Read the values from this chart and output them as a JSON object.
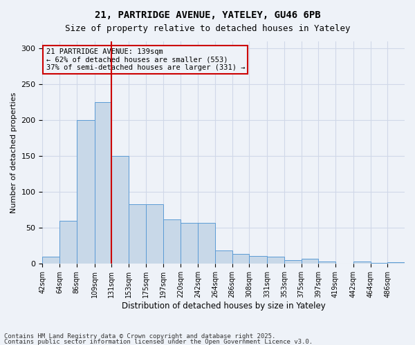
{
  "title1": "21, PARTRIDGE AVENUE, YATELEY, GU46 6PB",
  "title2": "Size of property relative to detached houses in Yateley",
  "xlabel": "Distribution of detached houses by size in Yateley",
  "ylabel": "Number of detached properties",
  "bin_labels": [
    "42sqm",
    "64sqm",
    "86sqm",
    "109sqm",
    "131sqm",
    "153sqm",
    "175sqm",
    "197sqm",
    "220sqm",
    "242sqm",
    "264sqm",
    "286sqm",
    "308sqm",
    "331sqm",
    "353sqm",
    "375sqm",
    "397sqm",
    "419sqm",
    "442sqm",
    "464sqm",
    "486sqm"
  ],
  "bin_edges": [
    42,
    64,
    86,
    109,
    131,
    153,
    175,
    197,
    220,
    242,
    264,
    286,
    308,
    331,
    353,
    375,
    397,
    419,
    442,
    464,
    486,
    508
  ],
  "bar_heights": [
    10,
    60,
    200,
    225,
    150,
    83,
    83,
    62,
    57,
    57,
    19,
    14,
    11,
    10,
    5,
    7,
    3,
    0,
    3,
    1,
    2
  ],
  "bar_color": "#c8d8e8",
  "bar_edge_color": "#5b9bd5",
  "grid_color": "#d0d8e8",
  "bg_color": "#eef2f8",
  "red_line_x": 131,
  "annotation_title": "21 PARTRIDGE AVENUE: 139sqm",
  "annotation_line1": "← 62% of detached houses are smaller (553)",
  "annotation_line2": "37% of semi-detached houses are larger (331) →",
  "annotation_box_color": "#cc0000",
  "ylim": [
    0,
    310
  ],
  "yticks": [
    0,
    50,
    100,
    150,
    200,
    250,
    300
  ],
  "footer1": "Contains HM Land Registry data © Crown copyright and database right 2025.",
  "footer2": "Contains public sector information licensed under the Open Government Licence v3.0."
}
